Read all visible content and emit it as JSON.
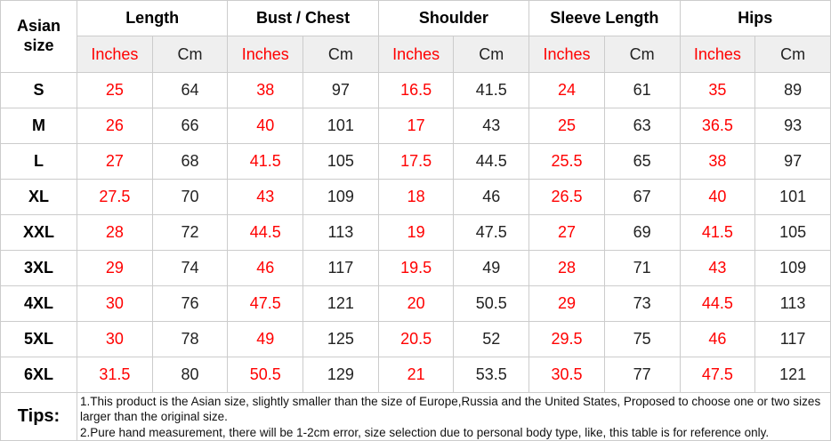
{
  "colors": {
    "inches_text": "#ff0000",
    "cm_text": "#222222",
    "header_bg": "#efefef",
    "border": "#cccccc",
    "size_label_text": "#000000"
  },
  "chart_data": {
    "type": "table",
    "title": "Asian size chart",
    "corner_label": "Asian size",
    "groups": [
      "Length",
      "Bust / Chest",
      "Shoulder",
      "Sleeve Length",
      "Hips"
    ],
    "unit_labels": [
      "Inches",
      "Cm"
    ],
    "rows": [
      {
        "size": "S",
        "values": [
          "25",
          "64",
          "38",
          "97",
          "16.5",
          "41.5",
          "24",
          "61",
          "35",
          "89"
        ]
      },
      {
        "size": "M",
        "values": [
          "26",
          "66",
          "40",
          "101",
          "17",
          "43",
          "25",
          "63",
          "36.5",
          "93"
        ]
      },
      {
        "size": "L",
        "values": [
          "27",
          "68",
          "41.5",
          "105",
          "17.5",
          "44.5",
          "25.5",
          "65",
          "38",
          "97"
        ]
      },
      {
        "size": "XL",
        "values": [
          "27.5",
          "70",
          "43",
          "109",
          "18",
          "46",
          "26.5",
          "67",
          "40",
          "101"
        ]
      },
      {
        "size": "XXL",
        "values": [
          "28",
          "72",
          "44.5",
          "113",
          "19",
          "47.5",
          "27",
          "69",
          "41.5",
          "105"
        ]
      },
      {
        "size": "3XL",
        "values": [
          "29",
          "74",
          "46",
          "117",
          "19.5",
          "49",
          "28",
          "71",
          "43",
          "109"
        ]
      },
      {
        "size": "4XL",
        "values": [
          "30",
          "76",
          "47.5",
          "121",
          "20",
          "50.5",
          "29",
          "73",
          "44.5",
          "113"
        ]
      },
      {
        "size": "5XL",
        "values": [
          "30",
          "78",
          "49",
          "125",
          "20.5",
          "52",
          "29.5",
          "75",
          "46",
          "117"
        ]
      },
      {
        "size": "6XL",
        "values": [
          "31.5",
          "80",
          "50.5",
          "129",
          "21",
          "53.5",
          "30.5",
          "77",
          "47.5",
          "121"
        ]
      }
    ]
  },
  "tips": {
    "label": "Tips:",
    "line1": "1.This product is the Asian size, slightly smaller than the size of Europe,Russia and the United States, Proposed to choose one or two sizes larger than the original size.",
    "line2": "2.Pure hand measurement, there will be 1-2cm error, size selection due to personal body type, like, this table is for reference only."
  }
}
